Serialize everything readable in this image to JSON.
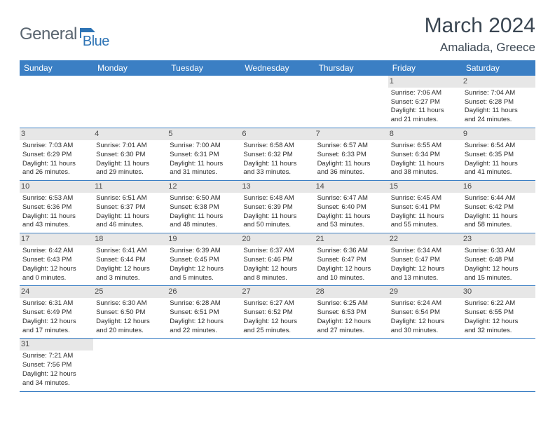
{
  "logo": {
    "part1": "General",
    "part2": "Blue"
  },
  "title": "March 2024",
  "location": "Amaliada, Greece",
  "colors": {
    "header_bg": "#3b7fc4",
    "header_text": "#ffffff",
    "daynum_bg": "#e7e7e7",
    "border": "#3b7fc4",
    "logo_gray": "#5a6570",
    "logo_blue": "#2e74b5"
  },
  "weekdays": [
    "Sunday",
    "Monday",
    "Tuesday",
    "Wednesday",
    "Thursday",
    "Friday",
    "Saturday"
  ],
  "weeks": [
    [
      null,
      null,
      null,
      null,
      null,
      {
        "n": "1",
        "sr": "Sunrise: 7:06 AM",
        "ss": "Sunset: 6:27 PM",
        "d1": "Daylight: 11 hours",
        "d2": "and 21 minutes."
      },
      {
        "n": "2",
        "sr": "Sunrise: 7:04 AM",
        "ss": "Sunset: 6:28 PM",
        "d1": "Daylight: 11 hours",
        "d2": "and 24 minutes."
      }
    ],
    [
      {
        "n": "3",
        "sr": "Sunrise: 7:03 AM",
        "ss": "Sunset: 6:29 PM",
        "d1": "Daylight: 11 hours",
        "d2": "and 26 minutes."
      },
      {
        "n": "4",
        "sr": "Sunrise: 7:01 AM",
        "ss": "Sunset: 6:30 PM",
        "d1": "Daylight: 11 hours",
        "d2": "and 29 minutes."
      },
      {
        "n": "5",
        "sr": "Sunrise: 7:00 AM",
        "ss": "Sunset: 6:31 PM",
        "d1": "Daylight: 11 hours",
        "d2": "and 31 minutes."
      },
      {
        "n": "6",
        "sr": "Sunrise: 6:58 AM",
        "ss": "Sunset: 6:32 PM",
        "d1": "Daylight: 11 hours",
        "d2": "and 33 minutes."
      },
      {
        "n": "7",
        "sr": "Sunrise: 6:57 AM",
        "ss": "Sunset: 6:33 PM",
        "d1": "Daylight: 11 hours",
        "d2": "and 36 minutes."
      },
      {
        "n": "8",
        "sr": "Sunrise: 6:55 AM",
        "ss": "Sunset: 6:34 PM",
        "d1": "Daylight: 11 hours",
        "d2": "and 38 minutes."
      },
      {
        "n": "9",
        "sr": "Sunrise: 6:54 AM",
        "ss": "Sunset: 6:35 PM",
        "d1": "Daylight: 11 hours",
        "d2": "and 41 minutes."
      }
    ],
    [
      {
        "n": "10",
        "sr": "Sunrise: 6:53 AM",
        "ss": "Sunset: 6:36 PM",
        "d1": "Daylight: 11 hours",
        "d2": "and 43 minutes."
      },
      {
        "n": "11",
        "sr": "Sunrise: 6:51 AM",
        "ss": "Sunset: 6:37 PM",
        "d1": "Daylight: 11 hours",
        "d2": "and 46 minutes."
      },
      {
        "n": "12",
        "sr": "Sunrise: 6:50 AM",
        "ss": "Sunset: 6:38 PM",
        "d1": "Daylight: 11 hours",
        "d2": "and 48 minutes."
      },
      {
        "n": "13",
        "sr": "Sunrise: 6:48 AM",
        "ss": "Sunset: 6:39 PM",
        "d1": "Daylight: 11 hours",
        "d2": "and 50 minutes."
      },
      {
        "n": "14",
        "sr": "Sunrise: 6:47 AM",
        "ss": "Sunset: 6:40 PM",
        "d1": "Daylight: 11 hours",
        "d2": "and 53 minutes."
      },
      {
        "n": "15",
        "sr": "Sunrise: 6:45 AM",
        "ss": "Sunset: 6:41 PM",
        "d1": "Daylight: 11 hours",
        "d2": "and 55 minutes."
      },
      {
        "n": "16",
        "sr": "Sunrise: 6:44 AM",
        "ss": "Sunset: 6:42 PM",
        "d1": "Daylight: 11 hours",
        "d2": "and 58 minutes."
      }
    ],
    [
      {
        "n": "17",
        "sr": "Sunrise: 6:42 AM",
        "ss": "Sunset: 6:43 PM",
        "d1": "Daylight: 12 hours",
        "d2": "and 0 minutes."
      },
      {
        "n": "18",
        "sr": "Sunrise: 6:41 AM",
        "ss": "Sunset: 6:44 PM",
        "d1": "Daylight: 12 hours",
        "d2": "and 3 minutes."
      },
      {
        "n": "19",
        "sr": "Sunrise: 6:39 AM",
        "ss": "Sunset: 6:45 PM",
        "d1": "Daylight: 12 hours",
        "d2": "and 5 minutes."
      },
      {
        "n": "20",
        "sr": "Sunrise: 6:37 AM",
        "ss": "Sunset: 6:46 PM",
        "d1": "Daylight: 12 hours",
        "d2": "and 8 minutes."
      },
      {
        "n": "21",
        "sr": "Sunrise: 6:36 AM",
        "ss": "Sunset: 6:47 PM",
        "d1": "Daylight: 12 hours",
        "d2": "and 10 minutes."
      },
      {
        "n": "22",
        "sr": "Sunrise: 6:34 AM",
        "ss": "Sunset: 6:47 PM",
        "d1": "Daylight: 12 hours",
        "d2": "and 13 minutes."
      },
      {
        "n": "23",
        "sr": "Sunrise: 6:33 AM",
        "ss": "Sunset: 6:48 PM",
        "d1": "Daylight: 12 hours",
        "d2": "and 15 minutes."
      }
    ],
    [
      {
        "n": "24",
        "sr": "Sunrise: 6:31 AM",
        "ss": "Sunset: 6:49 PM",
        "d1": "Daylight: 12 hours",
        "d2": "and 17 minutes."
      },
      {
        "n": "25",
        "sr": "Sunrise: 6:30 AM",
        "ss": "Sunset: 6:50 PM",
        "d1": "Daylight: 12 hours",
        "d2": "and 20 minutes."
      },
      {
        "n": "26",
        "sr": "Sunrise: 6:28 AM",
        "ss": "Sunset: 6:51 PM",
        "d1": "Daylight: 12 hours",
        "d2": "and 22 minutes."
      },
      {
        "n": "27",
        "sr": "Sunrise: 6:27 AM",
        "ss": "Sunset: 6:52 PM",
        "d1": "Daylight: 12 hours",
        "d2": "and 25 minutes."
      },
      {
        "n": "28",
        "sr": "Sunrise: 6:25 AM",
        "ss": "Sunset: 6:53 PM",
        "d1": "Daylight: 12 hours",
        "d2": "and 27 minutes."
      },
      {
        "n": "29",
        "sr": "Sunrise: 6:24 AM",
        "ss": "Sunset: 6:54 PM",
        "d1": "Daylight: 12 hours",
        "d2": "and 30 minutes."
      },
      {
        "n": "30",
        "sr": "Sunrise: 6:22 AM",
        "ss": "Sunset: 6:55 PM",
        "d1": "Daylight: 12 hours",
        "d2": "and 32 minutes."
      }
    ],
    [
      {
        "n": "31",
        "sr": "Sunrise: 7:21 AM",
        "ss": "Sunset: 7:56 PM",
        "d1": "Daylight: 12 hours",
        "d2": "and 34 minutes."
      },
      null,
      null,
      null,
      null,
      null,
      null
    ]
  ]
}
